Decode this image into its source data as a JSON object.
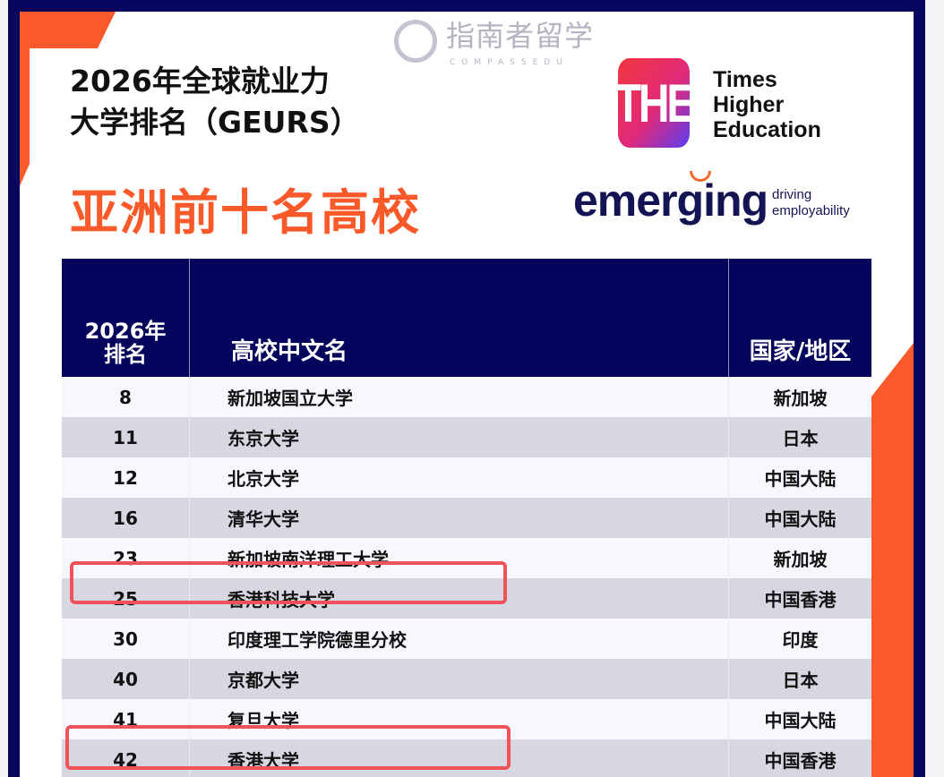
{
  "header": {
    "title_line1": "2026年全球就业力",
    "title_line2": "大学排名（GEURS）",
    "subtitle": "亚洲前十名高校"
  },
  "logos": {
    "the_mark": "THE",
    "the_line1": "Times",
    "the_line2": "Higher",
    "the_line3": "Education",
    "emerging": "emerging",
    "emerging_tag1": "driving",
    "emerging_tag2": "employability"
  },
  "table": {
    "headers": {
      "rank_line1": "2026年",
      "rank_line2": "排名",
      "name": "高校中文名",
      "region": "国家/地区"
    },
    "rows": [
      {
        "rank": "8",
        "name": "新加坡国立大学",
        "region": "新加坡",
        "highlighted": false
      },
      {
        "rank": "11",
        "name": "东京大学",
        "region": "日本",
        "highlighted": false
      },
      {
        "rank": "12",
        "name": "北京大学",
        "region": "中国大陆",
        "highlighted": false
      },
      {
        "rank": "16",
        "name": "清华大学",
        "region": "中国大陆",
        "highlighted": false
      },
      {
        "rank": "23",
        "name": "新加坡南洋理工大学",
        "region": "新加坡",
        "highlighted": false
      },
      {
        "rank": "25",
        "name": "香港科技大学",
        "region": "中国香港",
        "highlighted": true
      },
      {
        "rank": "30",
        "name": "印度理工学院德里分校",
        "region": "印度",
        "highlighted": false
      },
      {
        "rank": "40",
        "name": "京都大学",
        "region": "日本",
        "highlighted": false
      },
      {
        "rank": "41",
        "name": "复旦大学",
        "region": "中国大陆",
        "highlighted": false
      },
      {
        "rank": "42",
        "name": "香港大学",
        "region": "中国香港",
        "highlighted": true
      }
    ]
  },
  "watermark": {
    "cn": "指南者留学",
    "en": "COMPASSEDU"
  },
  "colors": {
    "navy": "#05045c",
    "orange": "#fa5a2a",
    "highlight": "#f0525a",
    "row_light": "#f7f7fe",
    "row_dark": "#d7d7e2"
  }
}
